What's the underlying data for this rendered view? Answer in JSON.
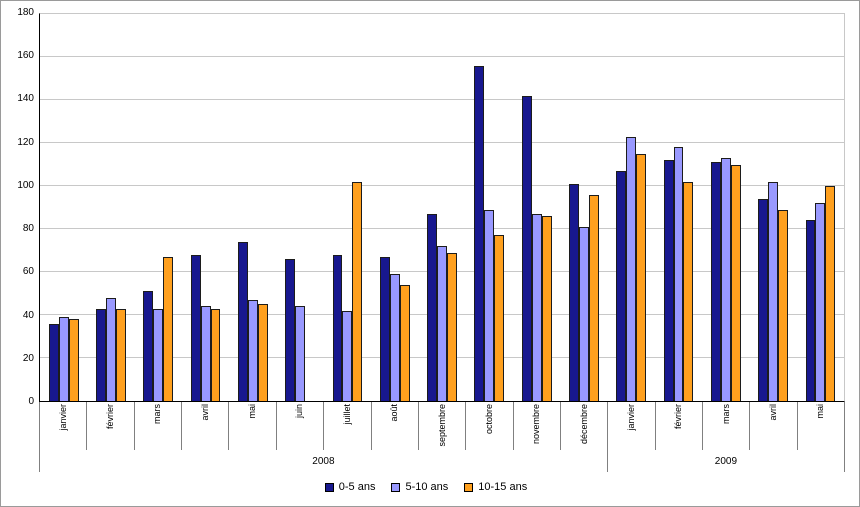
{
  "chart_data": {
    "type": "bar",
    "title": "",
    "xlabel": "",
    "ylabel": "",
    "ylim": [
      0,
      180
    ],
    "y_ticks": [
      0,
      20,
      40,
      60,
      80,
      100,
      120,
      140,
      160,
      180
    ],
    "grid": true,
    "legend_position": "bottom",
    "categories": [
      "janvier",
      "février",
      "mars",
      "avril",
      "mai",
      "juin",
      "juillet",
      "août",
      "septembre",
      "octobre",
      "novembre",
      "décembre",
      "janvier",
      "février",
      "mars",
      "avril",
      "mai"
    ],
    "group_axis": [
      {
        "label": "2008",
        "months": [
          "janvier",
          "février",
          "mars",
          "avril",
          "mai",
          "juin",
          "juillet",
          "août",
          "septembre",
          "octobre",
          "novembre",
          "décembre"
        ]
      },
      {
        "label": "2009",
        "months": [
          "janvier",
          "février",
          "mars",
          "avril",
          "mai"
        ]
      }
    ],
    "series": [
      {
        "name": "0-5 ans",
        "color": "#18188f",
        "values": [
          36,
          43,
          51,
          68,
          74,
          66,
          68,
          67,
          87,
          156,
          142,
          101,
          107,
          112,
          111,
          94,
          84
        ]
      },
      {
        "name": "5-10 ans",
        "color": "#9999ff",
        "values": [
          39,
          48,
          43,
          44,
          47,
          44,
          42,
          59,
          72,
          89,
          87,
          81,
          123,
          118,
          113,
          102,
          92
        ]
      },
      {
        "name": "10-15 ans",
        "color": "#ffa01e",
        "values": [
          38,
          43,
          67,
          43,
          45,
          0,
          102,
          54,
          69,
          77,
          86,
          96,
          115,
          102,
          110,
          89,
          100
        ]
      }
    ]
  },
  "colors": {
    "gridline": "#c8c8c8",
    "axis": "#000000",
    "plot_background": "#ffffff"
  }
}
